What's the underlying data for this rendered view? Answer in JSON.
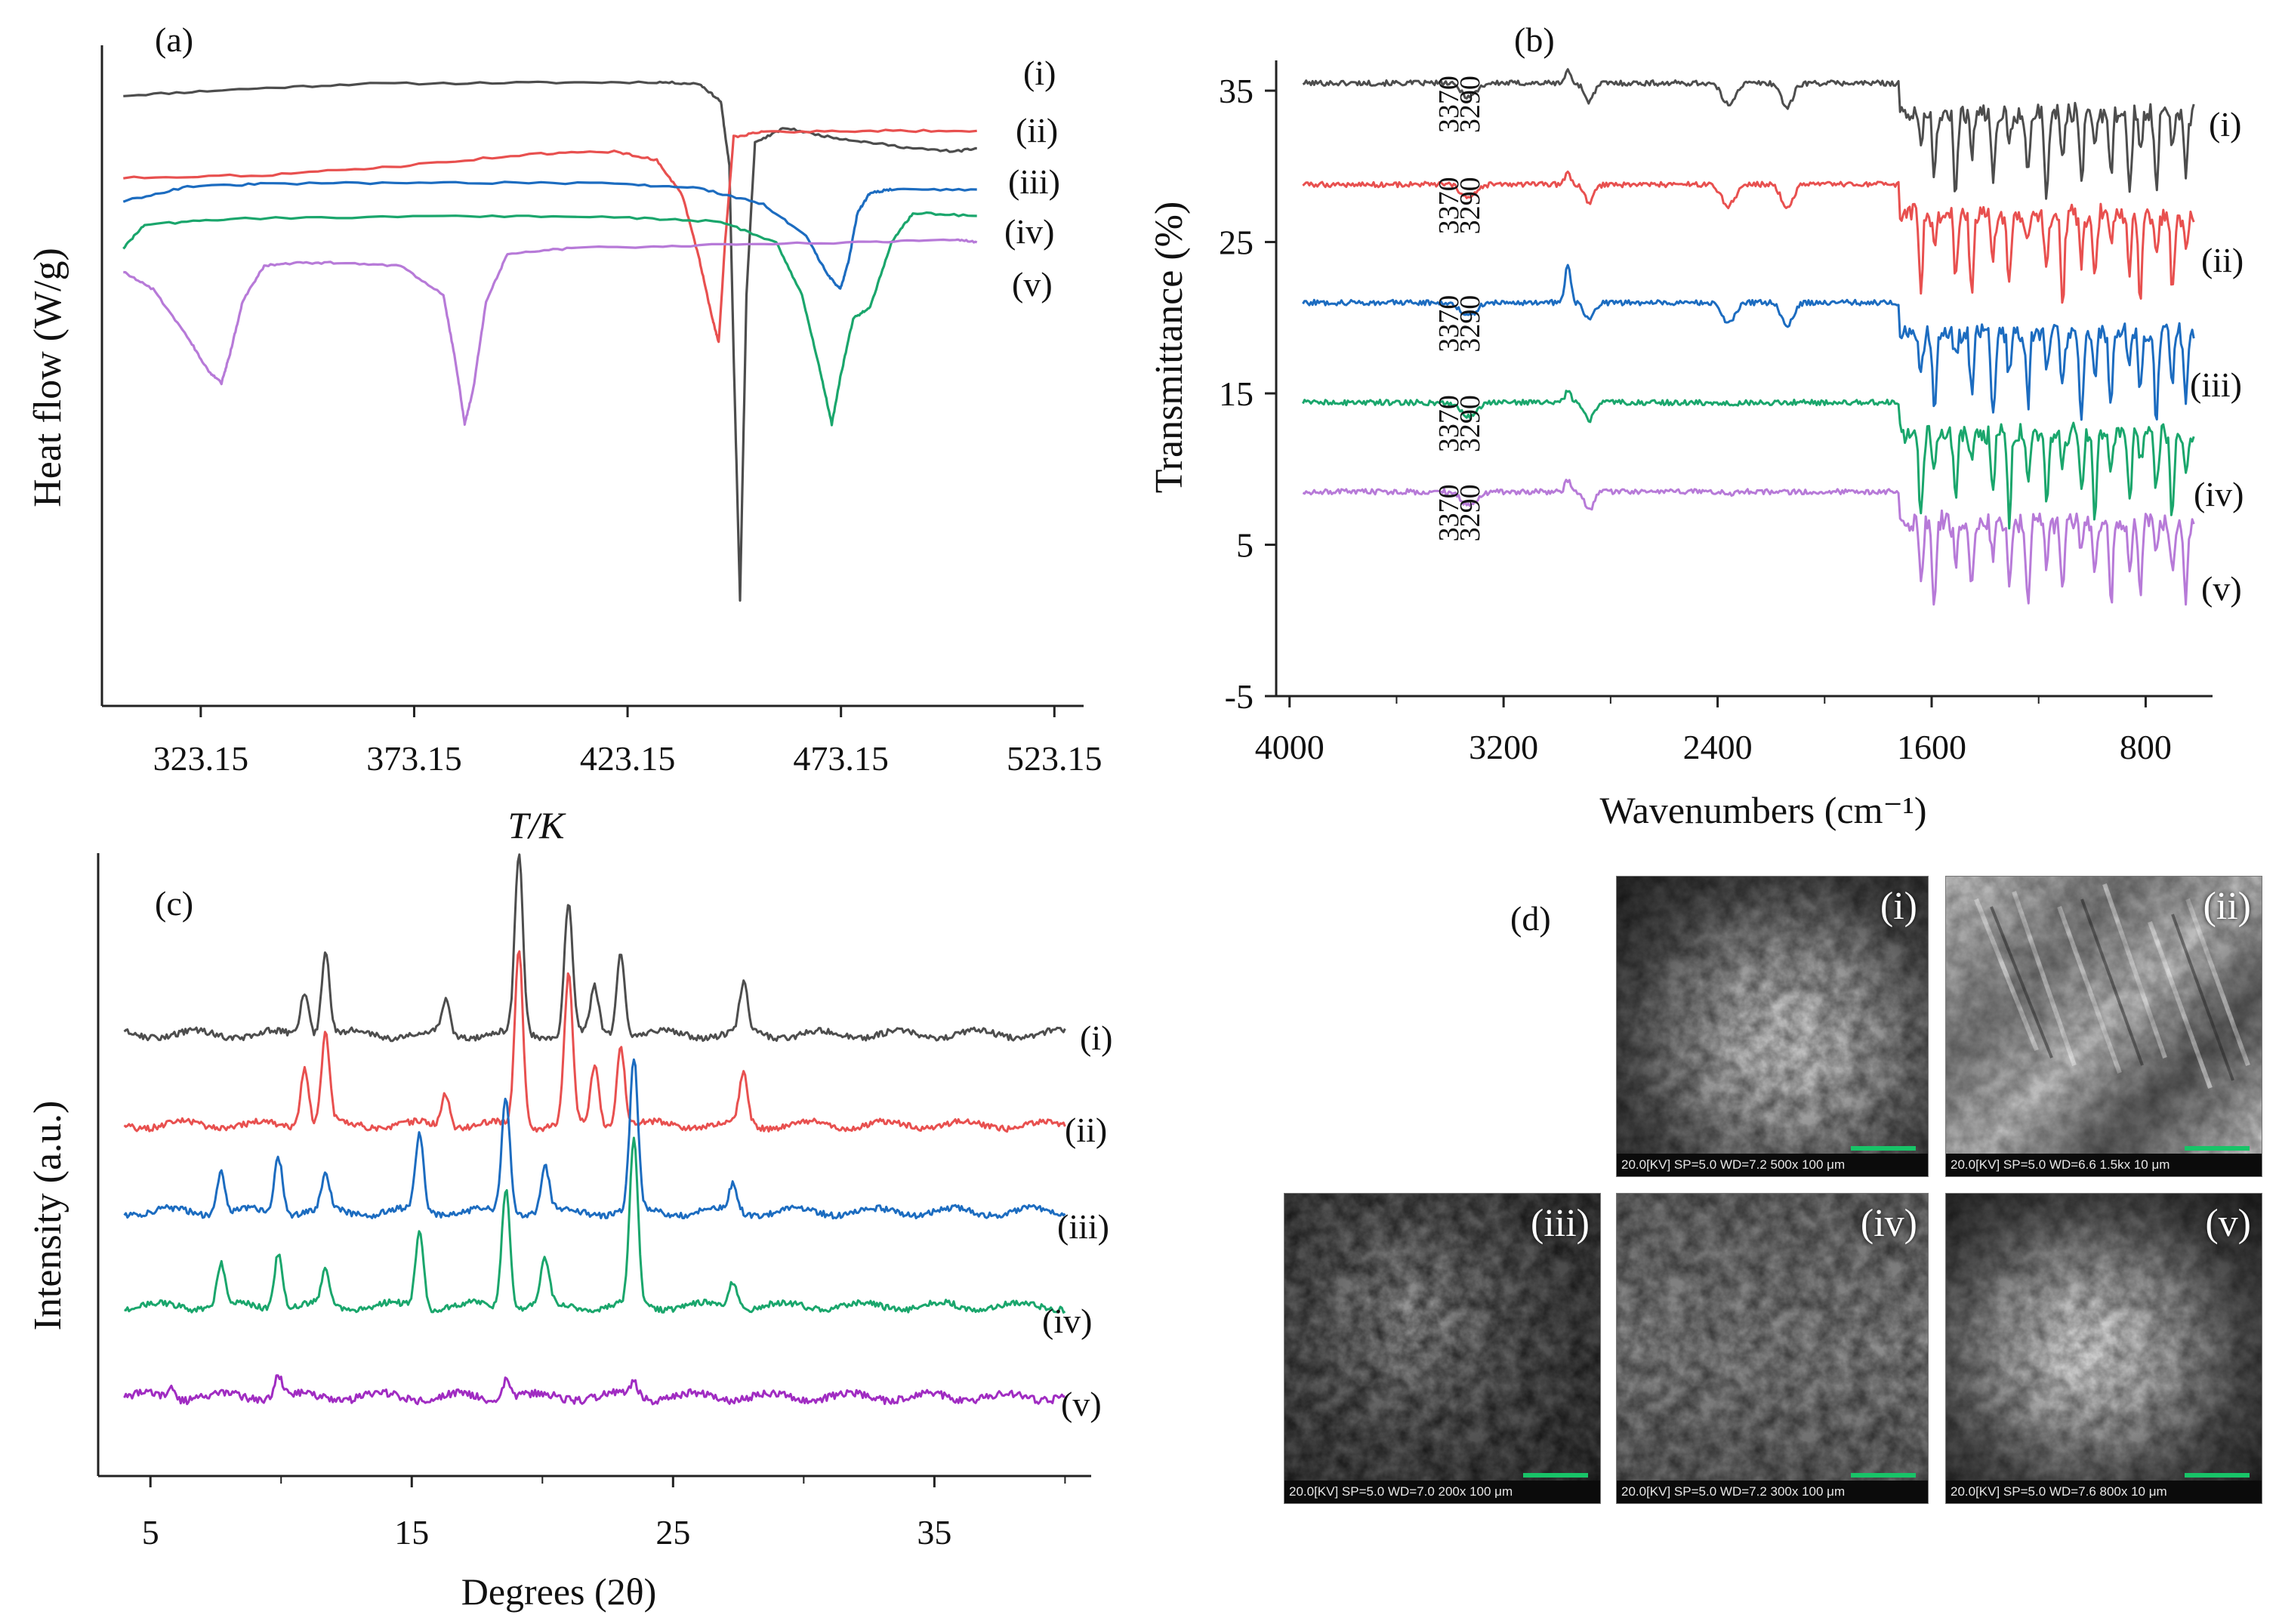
{
  "colors": {
    "i": "#4d4d4d",
    "ii": "#e8504f",
    "iii": "#1c6cc0",
    "iv": "#1aa66c",
    "v": "#b77ad8",
    "v_xrd": "#a02cc2",
    "axis": "#222222"
  },
  "chart_data": [
    {
      "panel": "(a)",
      "type": "line",
      "title": "(a)",
      "xlabel": "T/K",
      "ylabel": "Heat flow (W/g)",
      "xlim": [
        300,
        530
      ],
      "ylim": [
        -1,
        10
      ],
      "x_ticks": [
        "323.15",
        "373.15",
        "423.15",
        "473.15",
        "523.15"
      ],
      "series_labels": [
        "(i)",
        "(ii)",
        "(iii)",
        "(iv)",
        "(v)"
      ],
      "series": [
        {
          "name": "(i)",
          "color_key": "i",
          "x": [
            305,
            330,
            360,
            400,
            430,
            440,
            445,
            447,
            448,
            449.5,
            451,
            453,
            460,
            470,
            480,
            490,
            500,
            505
          ],
          "y": [
            9.4,
            9.5,
            9.6,
            9.62,
            9.63,
            9.6,
            9.3,
            8.2,
            5.0,
            0.8,
            6.0,
            8.6,
            8.85,
            8.7,
            8.6,
            8.5,
            8.45,
            8.5
          ]
        },
        {
          "name": "(ii)",
          "color_key": "ii",
          "x": [
            305,
            340,
            370,
            400,
            420,
            430,
            436,
            440,
            443,
            444.5,
            446,
            448,
            455,
            480,
            505
          ],
          "y": [
            8.0,
            8.05,
            8.2,
            8.4,
            8.45,
            8.3,
            7.7,
            6.6,
            5.6,
            5.2,
            6.9,
            8.7,
            8.78,
            8.8,
            8.8
          ],
          "note": "endotherm ~444 K"
        },
        {
          "name": "(iii)",
          "color_key": "iii",
          "x": [
            305,
            320,
            340,
            380,
            420,
            440,
            455,
            465,
            470,
            473,
            475,
            477,
            480,
            485,
            505
          ],
          "y": [
            7.6,
            7.85,
            7.9,
            7.92,
            7.9,
            7.82,
            7.55,
            7.0,
            6.35,
            6.1,
            6.6,
            7.4,
            7.75,
            7.8,
            7.8
          ]
        },
        {
          "name": "(iv)",
          "color_key": "iv",
          "x": [
            305,
            310,
            330,
            380,
            420,
            445,
            458,
            464,
            468,
            471,
            473,
            476,
            480,
            485,
            490,
            505
          ],
          "y": [
            6.8,
            7.2,
            7.3,
            7.35,
            7.33,
            7.25,
            6.9,
            6.0,
            4.8,
            3.8,
            4.6,
            5.6,
            5.8,
            6.9,
            7.4,
            7.35
          ]
        },
        {
          "name": "(v)",
          "color_key": "v",
          "x": [
            305,
            312,
            320,
            325,
            328,
            330,
            333,
            338,
            345,
            355,
            370,
            380,
            383,
            385,
            387,
            390,
            395,
            410,
            440,
            480,
            500,
            505
          ],
          "y": [
            6.4,
            6.1,
            5.3,
            4.7,
            4.5,
            5.0,
            5.9,
            6.5,
            6.55,
            6.55,
            6.5,
            6.0,
            4.8,
            3.8,
            4.4,
            5.9,
            6.7,
            6.8,
            6.85,
            6.9,
            6.95,
            6.9
          ]
        }
      ]
    },
    {
      "panel": "(b)",
      "type": "line",
      "title": "(b)",
      "xlabel": "Wavenumbers (cm⁻¹)",
      "ylabel": "Transmittance (%)",
      "xlim": [
        4050,
        550
      ],
      "ylim": [
        -5,
        37
      ],
      "x_ticks": [
        "4000",
        "3200",
        "2400",
        "1600",
        "800"
      ],
      "y_ticks": [
        "35",
        "25",
        "15",
        "5",
        "-5"
      ],
      "series_labels": [
        "(i)",
        "(ii)",
        "(iii)",
        "(iv)",
        "(v)"
      ],
      "peak_labels": [
        "3370",
        "3290"
      ],
      "series": [
        {
          "name": "(i)",
          "color_key": "i",
          "baseline": 35.5
        },
        {
          "name": "(ii)",
          "color_key": "ii",
          "baseline": 28.8
        },
        {
          "name": "(iii)",
          "color_key": "iii",
          "baseline": 21.0
        },
        {
          "name": "(iv)",
          "color_key": "iv",
          "baseline": 14.4
        },
        {
          "name": "(v)",
          "color_key": "v",
          "baseline": 8.5
        }
      ]
    },
    {
      "panel": "(c)",
      "type": "line",
      "title": "(c)",
      "xlabel": "Degrees (2θ)",
      "ylabel": "Intensity (a.u.)",
      "xlim": [
        3,
        41
      ],
      "x_ticks": [
        "5",
        "15",
        "25",
        "35"
      ],
      "series_labels": [
        "(i)",
        "(ii)",
        "(iii)",
        "(iv)",
        "(v)"
      ],
      "series": [
        {
          "name": "(i)",
          "color_key": "i",
          "peaks_2theta": [
            10.9,
            11.7,
            16.3,
            19.1,
            21.0,
            22.0,
            23.0,
            27.7
          ]
        },
        {
          "name": "(ii)",
          "color_key": "ii",
          "peaks_2theta": [
            10.9,
            11.7,
            16.3,
            19.1,
            21.0,
            22.0,
            23.0,
            27.7
          ]
        },
        {
          "name": "(iii)",
          "color_key": "iii",
          "peaks_2theta": [
            7.7,
            9.9,
            11.7,
            15.3,
            18.6,
            20.1,
            23.5,
            27.3
          ]
        },
        {
          "name": "(iv)",
          "color_key": "iv",
          "peaks_2theta": [
            7.7,
            9.9,
            11.7,
            15.3,
            18.6,
            20.1,
            23.5,
            27.3
          ]
        },
        {
          "name": "(v)",
          "color_key": "v_xrd",
          "peaks_2theta": [
            5.8,
            9.9,
            18.6,
            23.5
          ]
        }
      ]
    }
  ],
  "panel_d": {
    "title": "(d)",
    "images": [
      {
        "label": "(i)",
        "footer": "20.0[KV] SP=5.0 WD=7.2 500x 100 μm",
        "scale": "100 μm"
      },
      {
        "label": "(ii)",
        "footer": "20.0[KV] SP=5.0 WD=6.6 1.5kx 10 μm",
        "scale": "10 μm"
      },
      {
        "label": "(iii)",
        "footer": "20.0[KV] SP=5.0 WD=7.0 200x 100 μm",
        "scale": "100 μm"
      },
      {
        "label": "(iv)",
        "footer": "20.0[KV] SP=5.0 WD=7.2 300x 100 μm",
        "scale": "100 μm"
      },
      {
        "label": "(v)",
        "footer": "20.0[KV] SP=5.0 WD=7.6 800x 10 μm",
        "scale": "10 μm"
      }
    ]
  }
}
